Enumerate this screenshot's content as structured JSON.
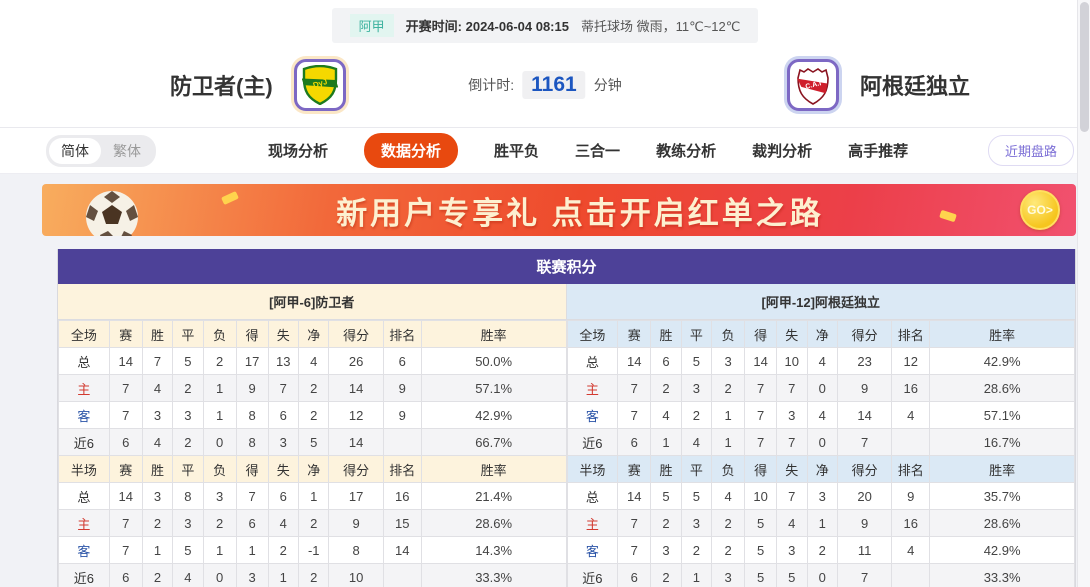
{
  "top_bar": {
    "league_badge": "阿甲",
    "kickoff": "开赛时间: 2024-06-04 08:15",
    "venue_weather": "蒂托球场  微雨，11℃~12℃"
  },
  "header": {
    "home_team": {
      "name": "防卫者(主)",
      "logo": "dyj-shield"
    },
    "away_team": {
      "name": "阿根廷独立",
      "logo": "cai-shield"
    },
    "countdown": {
      "label": "倒计时:",
      "value": "1161",
      "unit": "分钟"
    }
  },
  "nav": {
    "lang_toggle": {
      "simplified": "简体",
      "traditional": "繁体"
    },
    "items": [
      {
        "label": "现场分析",
        "active": false
      },
      {
        "label": "数据分析",
        "active": true
      },
      {
        "label": "胜平负",
        "active": false
      },
      {
        "label": "三合一",
        "active": false
      },
      {
        "label": "教练分析",
        "active": false
      },
      {
        "label": "裁判分析",
        "active": false
      },
      {
        "label": "高手推荐",
        "active": false
      }
    ],
    "recent_button": "近期盘路"
  },
  "banner": {
    "text": "新用户专享礼  点击开启红单之路",
    "go_label": "GO>"
  },
  "league_table": {
    "title": "联赛积分",
    "home_header": "[阿甲-6]防卫者",
    "away_header": "[阿甲-12]阿根廷独立",
    "full_columns": [
      "全场",
      "赛",
      "胜",
      "平",
      "负",
      "得",
      "失",
      "净",
      "得分",
      "排名",
      "胜率"
    ],
    "half_columns": [
      "半场",
      "赛",
      "胜",
      "平",
      "负",
      "得",
      "失",
      "净",
      "得分",
      "排名",
      "胜率"
    ],
    "home": {
      "full": [
        {
          "label": "总",
          "type": "total",
          "values": [
            "14",
            "7",
            "5",
            "2",
            "17",
            "13",
            "4",
            "26",
            "6",
            "50.0%"
          ]
        },
        {
          "label": "主",
          "type": "home",
          "values": [
            "7",
            "4",
            "2",
            "1",
            "9",
            "7",
            "2",
            "14",
            "9",
            "57.1%"
          ]
        },
        {
          "label": "客",
          "type": "away",
          "values": [
            "7",
            "3",
            "3",
            "1",
            "8",
            "6",
            "2",
            "12",
            "9",
            "42.9%"
          ]
        },
        {
          "label": "近6",
          "type": "recent",
          "values": [
            "6",
            "4",
            "2",
            "0",
            "8",
            "3",
            "5",
            "14",
            "",
            "66.7%"
          ]
        }
      ],
      "half": [
        {
          "label": "总",
          "type": "total",
          "values": [
            "14",
            "3",
            "8",
            "3",
            "7",
            "6",
            "1",
            "17",
            "16",
            "21.4%"
          ]
        },
        {
          "label": "主",
          "type": "home",
          "values": [
            "7",
            "2",
            "3",
            "2",
            "6",
            "4",
            "2",
            "9",
            "15",
            "28.6%"
          ]
        },
        {
          "label": "客",
          "type": "away",
          "values": [
            "7",
            "1",
            "5",
            "1",
            "1",
            "2",
            "-1",
            "8",
            "14",
            "14.3%"
          ]
        },
        {
          "label": "近6",
          "type": "recent",
          "values": [
            "6",
            "2",
            "4",
            "0",
            "3",
            "1",
            "2",
            "10",
            "",
            "33.3%"
          ]
        }
      ]
    },
    "away": {
      "full": [
        {
          "label": "总",
          "type": "total",
          "values": [
            "14",
            "6",
            "5",
            "3",
            "14",
            "10",
            "4",
            "23",
            "12",
            "42.9%"
          ]
        },
        {
          "label": "主",
          "type": "home",
          "values": [
            "7",
            "2",
            "3",
            "2",
            "7",
            "7",
            "0",
            "9",
            "16",
            "28.6%"
          ]
        },
        {
          "label": "客",
          "type": "away",
          "values": [
            "7",
            "4",
            "2",
            "1",
            "7",
            "3",
            "4",
            "14",
            "4",
            "57.1%"
          ]
        },
        {
          "label": "近6",
          "type": "recent",
          "values": [
            "6",
            "1",
            "4",
            "1",
            "7",
            "7",
            "0",
            "7",
            "",
            "16.7%"
          ]
        }
      ],
      "half": [
        {
          "label": "总",
          "type": "total",
          "values": [
            "14",
            "5",
            "5",
            "4",
            "10",
            "7",
            "3",
            "20",
            "9",
            "35.7%"
          ]
        },
        {
          "label": "主",
          "type": "home",
          "values": [
            "7",
            "2",
            "3",
            "2",
            "5",
            "4",
            "1",
            "9",
            "16",
            "28.6%"
          ]
        },
        {
          "label": "客",
          "type": "away",
          "values": [
            "7",
            "3",
            "2",
            "2",
            "5",
            "3",
            "2",
            "11",
            "4",
            "42.9%"
          ]
        },
        {
          "label": "近6",
          "type": "recent",
          "values": [
            "6",
            "2",
            "1",
            "3",
            "5",
            "5",
            "0",
            "7",
            "",
            "33.3%"
          ]
        }
      ]
    }
  },
  "colors": {
    "title_purple": "#4d4198",
    "home_cream": "#fdf3dd",
    "away_blue": "#dbe9f5",
    "nav_active_orange": "#e8490f",
    "countdown_blue": "#1c56c0",
    "home_row_red": "#d23a30",
    "away_row_blue": "#2b54a7",
    "badge_teal": "#3fb3a0"
  }
}
